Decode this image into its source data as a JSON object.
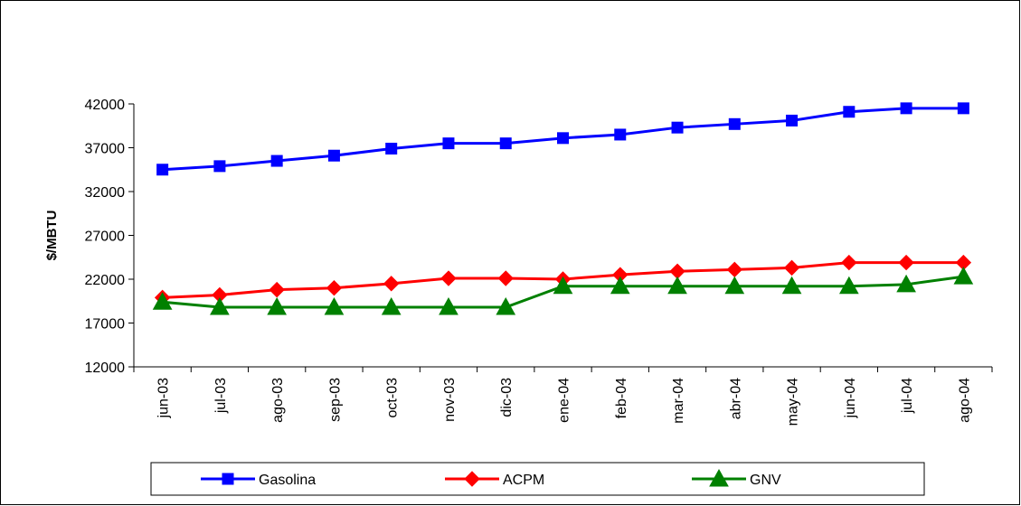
{
  "chart_data": {
    "type": "line",
    "title": "",
    "xlabel": "",
    "ylabel": "$/MBTU",
    "ylim": [
      12000,
      42000
    ],
    "yticks": [
      12000,
      17000,
      22000,
      27000,
      32000,
      37000,
      42000
    ],
    "grid": false,
    "legend_position": "bottom",
    "categories": [
      "jun-03",
      "jul-03",
      "ago-03",
      "sep-03",
      "oct-03",
      "nov-03",
      "dic-03",
      "ene-04",
      "feb-04",
      "mar-04",
      "abr-04",
      "may-04",
      "jun-04",
      "jul-04",
      "ago-04"
    ],
    "series": [
      {
        "name": "Gasolina",
        "color": "#0000FF",
        "marker": "square",
        "values": [
          34500,
          34900,
          35500,
          36100,
          36900,
          37500,
          37500,
          38100,
          38500,
          39300,
          39700,
          40100,
          41100,
          41500,
          41500
        ]
      },
      {
        "name": "ACPM",
        "color": "#FF0000",
        "marker": "diamond",
        "values": [
          19900,
          20200,
          20800,
          21000,
          21500,
          22100,
          22100,
          22000,
          22500,
          22900,
          23100,
          23300,
          23900,
          23900,
          23900
        ]
      },
      {
        "name": "GNV",
        "color": "#008000",
        "marker": "triangle",
        "values": [
          19400,
          18800,
          18800,
          18800,
          18800,
          18800,
          18800,
          21200,
          21200,
          21200,
          21200,
          21200,
          21200,
          21400,
          22300
        ]
      }
    ]
  }
}
